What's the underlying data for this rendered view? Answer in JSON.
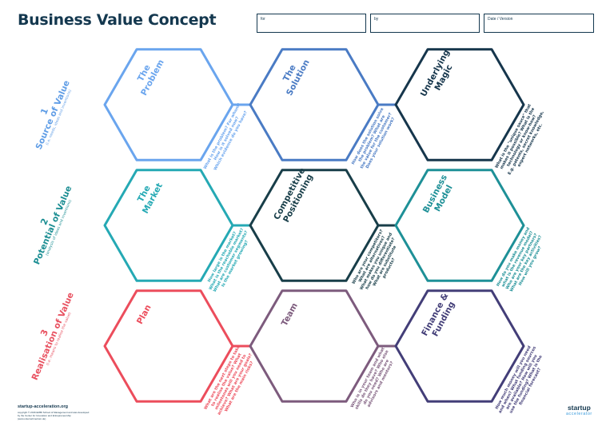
{
  "title": "Business Value Concept",
  "fields": [
    {
      "label": "for"
    },
    {
      "label": "by"
    },
    {
      "label": "Date / Version"
    }
  ],
  "rows": [
    {
      "number": "1",
      "label": "Source of Value",
      "hint": "(i.e. needs, ideas and inventions)",
      "color": "#5f9de6"
    },
    {
      "number": "2",
      "label": "Potential of Value",
      "hint": "(analysis of ideas and inventions)",
      "color": "#1c8e93"
    },
    {
      "number": "3",
      "label": "Realisation of Value",
      "hint": "(i.e. means to realise the value)",
      "color": "#e85261"
    }
  ],
  "hexagons": [
    {
      "title": [
        "The",
        "Problem"
      ],
      "color": "#6aa5ee",
      "question": [
        "What is the problem? For whom?",
        "How is it solved now?",
        "Which evidence do you have?"
      ]
    },
    {
      "title": [
        "The",
        "Solution"
      ],
      "color": "#4a7bc4",
      "question": [
        "How does the solution solve",
        "the problem? What are",
        "the value for the customer?",
        "Does your solution work?"
      ]
    },
    {
      "title": [
        "Underlying",
        "Magic"
      ],
      "color": "#16364c",
      "question": [
        "What is the \"unique sauce\" that",
        "makes it possible? What is the",
        "technology or know-how?",
        "E.g. patents, secret knowledge,",
        "expert networks, etc."
      ]
    },
    {
      "title": [
        "The",
        "Market"
      ],
      "color": "#25a9b4",
      "question": [
        "How large is the market?",
        "What is the reachable market?",
        "What are customer segments?",
        "Is the market growing?"
      ]
    },
    {
      "title": [
        "Competitive",
        "Positioning"
      ],
      "color": "#183e49",
      "question": [
        "Who are your competitors?",
        "What are alternatives?",
        "What makes you unique and",
        "how do you differentiate?",
        "What are substitute",
        "products?"
      ]
    },
    {
      "title": [
        "Business",
        "Model"
      ],
      "color": "#1e9097",
      "question": [
        "How do you make money and",
        "what is the revenue model?",
        "Who are your key partners?",
        "What are the key activities?",
        "How will you grow?"
      ]
    },
    {
      "title": [
        "Plan"
      ],
      "color": "#ec4d5c",
      "question": [
        "What are the next steps to take",
        "to realise the value? What",
        "milestones will you need to",
        "achieve? What are your goals?",
        "What are the main risks?"
      ]
    },
    {
      "title": [
        "Team"
      ],
      "color": "#7d5b7d",
      "question": [
        "Who is in your team and what",
        "skills do they have? Who else",
        "do you need? Who are",
        "advisors and mentors?"
      ]
    },
    {
      "title": [
        "Finance &",
        "Funding"
      ],
      "color": "#433e78",
      "question": [
        "How much money will you need",
        "and when? What funding sources",
        "are available? How will you",
        "use the funding? What is the",
        "financial forecast?"
      ]
    }
  ],
  "footer": {
    "url": "startup-acceleration.org",
    "copyright": "copyright © 2016 EMBI School of Management and was developed by the Center for Innovation and Entrepreneurship (www.unternehmertum.de)"
  },
  "logo": {
    "top": "startup",
    "bottom": "accelerator"
  }
}
